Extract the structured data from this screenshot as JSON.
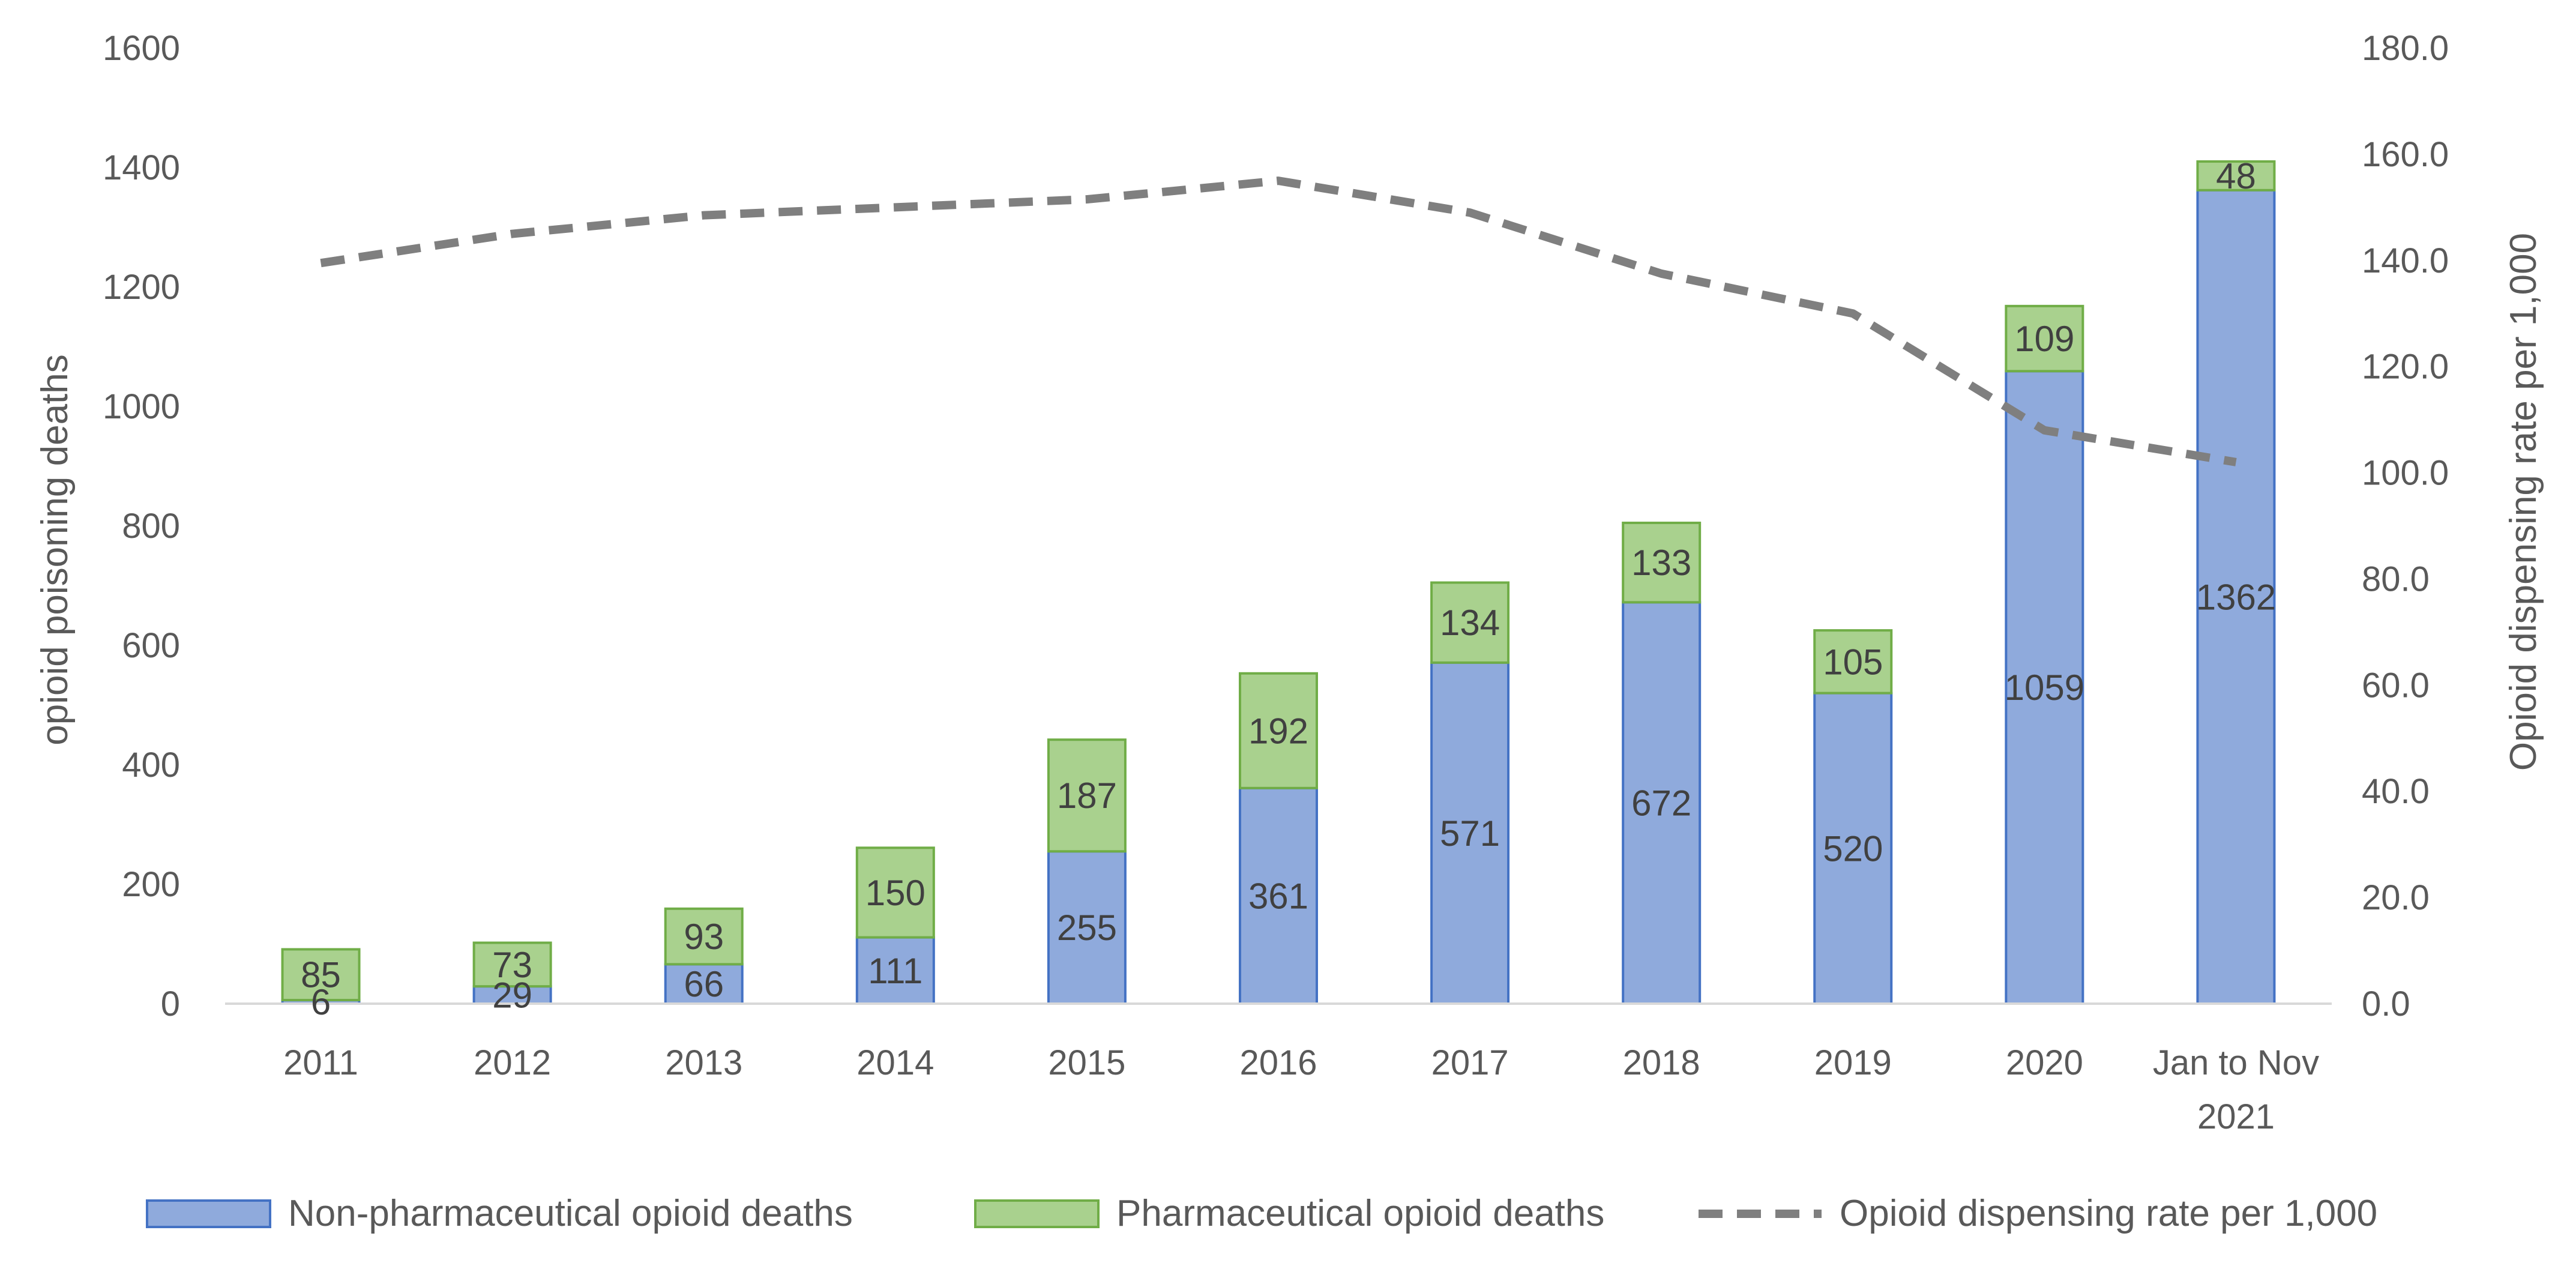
{
  "chart_data": {
    "type": "bar",
    "stacked": true,
    "title": "",
    "categories": [
      "2011",
      "2012",
      "2013",
      "2014",
      "2015",
      "2016",
      "2017",
      "2018",
      "2019",
      "2020",
      "Jan to Nov 2021"
    ],
    "category_lines": [
      [
        "2011"
      ],
      [
        "2012"
      ],
      [
        "2013"
      ],
      [
        "2014"
      ],
      [
        "2015"
      ],
      [
        "2016"
      ],
      [
        "2017"
      ],
      [
        "2018"
      ],
      [
        "2019"
      ],
      [
        "2020"
      ],
      [
        "Jan to Nov",
        "2021"
      ]
    ],
    "series": [
      {
        "name": "Non-pharmaceutical opioid deaths",
        "type": "bar",
        "axis": "left",
        "color": "#8faadc",
        "border": "#4472c4",
        "values": [
          6,
          29,
          66,
          111,
          255,
          361,
          571,
          672,
          520,
          1059,
          1362
        ]
      },
      {
        "name": "Pharmaceutical opioid deaths",
        "type": "bar",
        "axis": "left",
        "color": "#a9d18e",
        "border": "#70ad47",
        "values": [
          85,
          73,
          93,
          150,
          187,
          192,
          134,
          133,
          105,
          109,
          48
        ]
      },
      {
        "name": "Opioid dispensing rate per 1,000",
        "type": "line",
        "axis": "right",
        "color": "#7f7f7f",
        "dashed": true,
        "values": [
          139.5,
          145.0,
          148.5,
          150.0,
          151.5,
          155.0,
          149.0,
          137.5,
          130.0,
          108.0,
          102.0
        ]
      }
    ],
    "y_left": {
      "label": "opioid poisoning deaths",
      "min": 0,
      "max": 1600,
      "ticks": [
        "0",
        "200",
        "400",
        "600",
        "800",
        "1000",
        "1200",
        "1400",
        "1600"
      ]
    },
    "y_right": {
      "label": "Opioid dispensing rate per 1,000",
      "min": 0,
      "max": 180,
      "ticks": [
        "0.0",
        "20.0",
        "40.0",
        "60.0",
        "80.0",
        "100.0",
        "120.0",
        "140.0",
        "160.0",
        "180.0"
      ]
    },
    "grid": false,
    "legend_position": "bottom"
  }
}
